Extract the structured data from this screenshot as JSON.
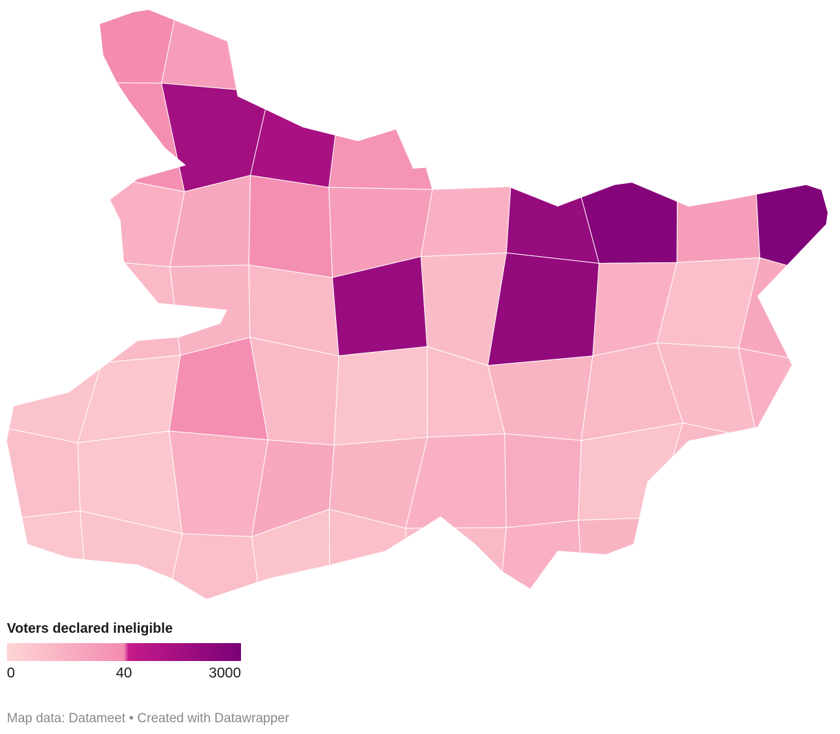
{
  "map": {
    "type": "choropleth",
    "values": [
      40,
      30,
      38,
      300,
      200,
      35,
      20,
      25,
      38,
      30,
      20,
      28,
      600,
      1500,
      30,
      2000,
      15,
      18,
      15,
      500,
      14,
      700,
      20,
      12,
      25,
      10,
      8,
      38,
      15,
      10,
      12,
      18,
      15,
      14,
      20,
      12,
      8,
      20,
      25,
      18,
      20,
      22,
      10,
      15,
      8,
      10,
      12,
      10,
      12,
      15,
      20,
      18
    ],
    "legend": {
      "title": "Voters declared ineligible",
      "ticks": [
        0,
        40,
        3000
      ],
      "colors": [
        "#fdd5d5",
        "#f48bb0",
        "#c51b8a",
        "#7a0177"
      ]
    },
    "footer": "Map data: Datameet • Created with Datawrapper"
  }
}
